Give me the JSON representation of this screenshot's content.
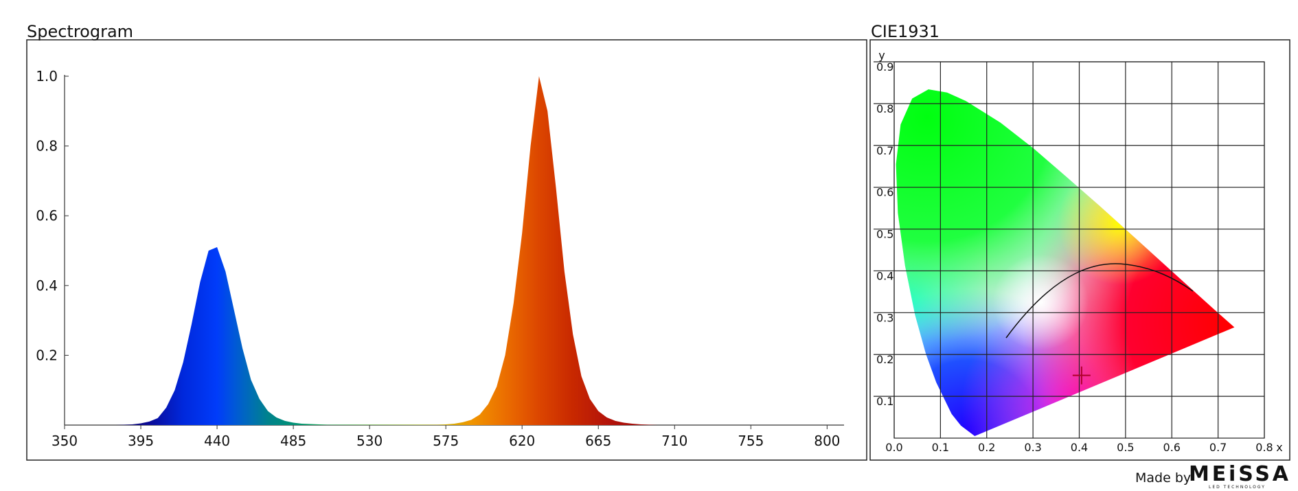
{
  "chart_data": [
    {
      "type": "area",
      "title": "Spectrogram",
      "x": [
        350,
        355,
        360,
        365,
        370,
        375,
        380,
        385,
        390,
        395,
        400,
        405,
        410,
        415,
        420,
        425,
        430,
        435,
        440,
        445,
        450,
        455,
        460,
        465,
        470,
        475,
        480,
        485,
        490,
        495,
        500,
        505,
        510,
        515,
        520,
        525,
        530,
        535,
        540,
        545,
        550,
        555,
        560,
        565,
        570,
        575,
        580,
        585,
        590,
        595,
        600,
        605,
        610,
        615,
        620,
        625,
        630,
        635,
        640,
        645,
        650,
        655,
        660,
        665,
        670,
        675,
        680,
        685,
        690,
        695,
        700,
        705,
        710,
        715,
        720,
        725,
        730,
        735,
        740,
        745,
        750,
        755,
        760,
        765,
        770,
        775,
        780,
        785,
        790,
        795,
        800,
        805
      ],
      "values": [
        0,
        0,
        0,
        0,
        0,
        0,
        0,
        0.001,
        0.002,
        0.005,
        0.01,
        0.02,
        0.05,
        0.1,
        0.18,
        0.29,
        0.41,
        0.5,
        0.51,
        0.44,
        0.33,
        0.22,
        0.13,
        0.075,
        0.04,
        0.022,
        0.012,
        0.007,
        0.004,
        0.003,
        0.002,
        0.001,
        0.001,
        0.001,
        0.001,
        0.001,
        0.001,
        0.001,
        0.001,
        0.001,
        0.001,
        0.001,
        0.001,
        0.001,
        0.001,
        0.002,
        0.004,
        0.008,
        0.015,
        0.03,
        0.06,
        0.11,
        0.2,
        0.35,
        0.55,
        0.8,
        1.0,
        0.9,
        0.68,
        0.44,
        0.26,
        0.14,
        0.075,
        0.04,
        0.022,
        0.012,
        0.007,
        0.004,
        0.002,
        0.001,
        0,
        0,
        0,
        0,
        0,
        0,
        0,
        0,
        0,
        0,
        0,
        0,
        0,
        0,
        0,
        0,
        0,
        0,
        0,
        0,
        0,
        0
      ],
      "xlim": [
        350,
        810
      ],
      "xticks": [
        350,
        395,
        440,
        485,
        530,
        575,
        620,
        665,
        710,
        755,
        800
      ],
      "ylim": [
        0,
        1
      ],
      "yticks": [
        0.2,
        0.4,
        0.6,
        0.8,
        {
          "value": 1,
          "label": "1.0"
        }
      ]
    },
    {
      "type": "scatter",
      "title": "CIE1931",
      "x_label": "x",
      "y_label": "y",
      "x": [
        0.405
      ],
      "y": [
        0.15
      ],
      "color": "#b0002a",
      "xlim": [
        0,
        0.8
      ],
      "xticks": [
        {
          "value": 0,
          "label": "0.0"
        },
        0.1,
        0.2,
        0.3,
        0.4,
        0.5,
        0.6,
        0.7,
        0.8
      ],
      "ylim": [
        0,
        0.9
      ],
      "yticks": [
        0.1,
        0.2,
        0.3,
        0.4,
        0.5,
        0.6,
        0.7,
        0.8,
        0.9
      ],
      "grid": true
    }
  ],
  "footer": {
    "made_by": "Made by",
    "brand": "MEiSSA",
    "tagline": "LED TECHNOLOGY"
  }
}
